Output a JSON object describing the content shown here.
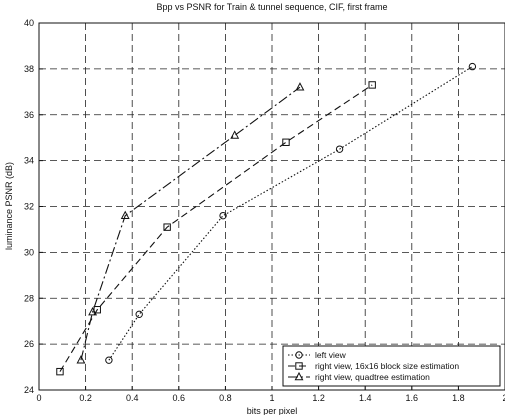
{
  "chart_data": {
    "type": "line",
    "title": "Bpp vs PSNR for Train & tunnel sequence, CIF, first frame",
    "xlabel": "bits per pixel",
    "ylabel": "luminance PSNR (dB)",
    "xlim": [
      0,
      2
    ],
    "ylim": [
      24,
      40
    ],
    "xticks": [
      0,
      0.2,
      0.4,
      0.6,
      0.8,
      1,
      1.2,
      1.4,
      1.6,
      1.8,
      2
    ],
    "xtick_labels": [
      "0",
      "0.2",
      "0.4",
      "0.6",
      "0.8",
      "1",
      "1.2",
      "1.4",
      "1.6",
      "1.8",
      "2"
    ],
    "yticks": [
      24,
      26,
      28,
      30,
      32,
      34,
      36,
      38,
      40
    ],
    "ytick_labels": [
      "24",
      "26",
      "28",
      "30",
      "32",
      "34",
      "36",
      "38",
      "40"
    ],
    "grid": true,
    "legend_position": "bottom-right",
    "series": [
      {
        "name": "left view",
        "marker": "circle",
        "line_style": "dotted",
        "x": [
          0.3,
          0.43,
          0.79,
          1.29,
          1.86
        ],
        "y": [
          25.3,
          27.3,
          31.6,
          34.5,
          38.1
        ]
      },
      {
        "name": "right view, 16x16 block size estimation",
        "marker": "square",
        "line_style": "dashed",
        "x": [
          0.09,
          0.25,
          0.55,
          1.06,
          1.43
        ],
        "y": [
          24.8,
          27.5,
          31.1,
          34.8,
          37.3
        ]
      },
      {
        "name": "right view, quadtree estimation",
        "marker": "triangle",
        "line_style": "dashdot",
        "x": [
          0.18,
          0.23,
          0.37,
          0.84,
          1.12
        ],
        "y": [
          25.3,
          27.4,
          31.6,
          35.1,
          37.2
        ]
      }
    ]
  }
}
